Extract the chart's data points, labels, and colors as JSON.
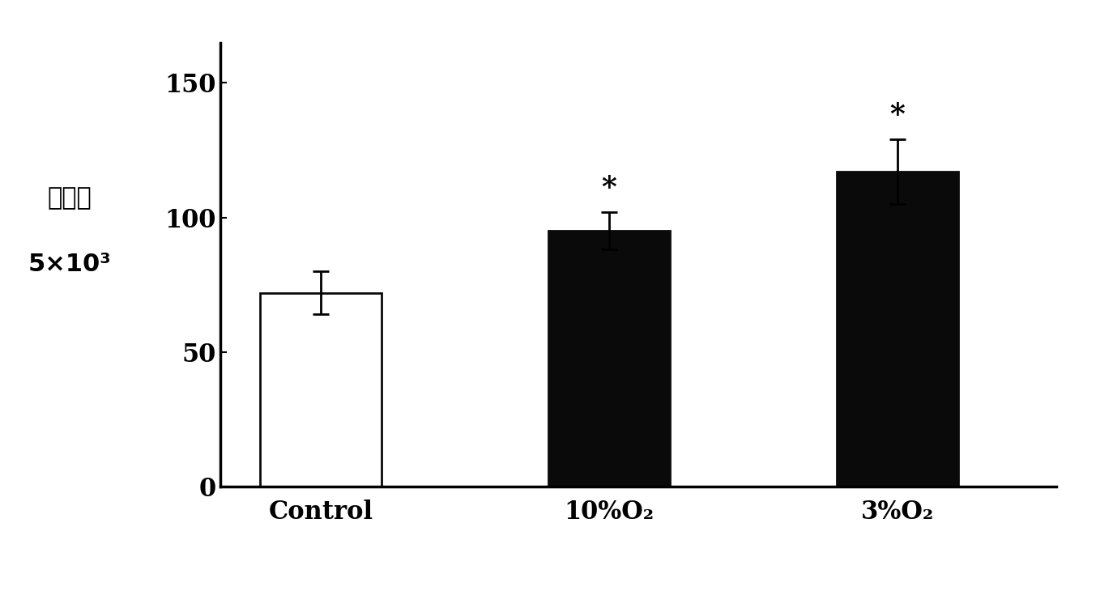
{
  "categories": [
    "Control",
    "10%O₂",
    "3%O₂"
  ],
  "values": [
    72,
    95,
    117
  ],
  "errors": [
    8,
    7,
    12
  ],
  "bar_colors": [
    "#ffffff",
    "#0a0a0a",
    "#0a0a0a"
  ],
  "bar_edgecolors": [
    "#0a0a0a",
    "#0a0a0a",
    "#0a0a0a"
  ],
  "bar_width": 0.42,
  "ylim": [
    0,
    165
  ],
  "yticks": [
    0,
    50,
    100,
    150
  ],
  "ylabel_line1": "细胞数",
  "ylabel_line2": "5×10³",
  "significance": [
    false,
    true,
    true
  ],
  "sig_marker": "*",
  "background_color": "#ffffff",
  "plot_bg_color": "#ffffff",
  "tick_fontsize": 22,
  "sig_fontsize": 26,
  "xlabel_fontsize": 22,
  "ylabel_fontsize": 22,
  "bar_positions": [
    1,
    2,
    3
  ]
}
